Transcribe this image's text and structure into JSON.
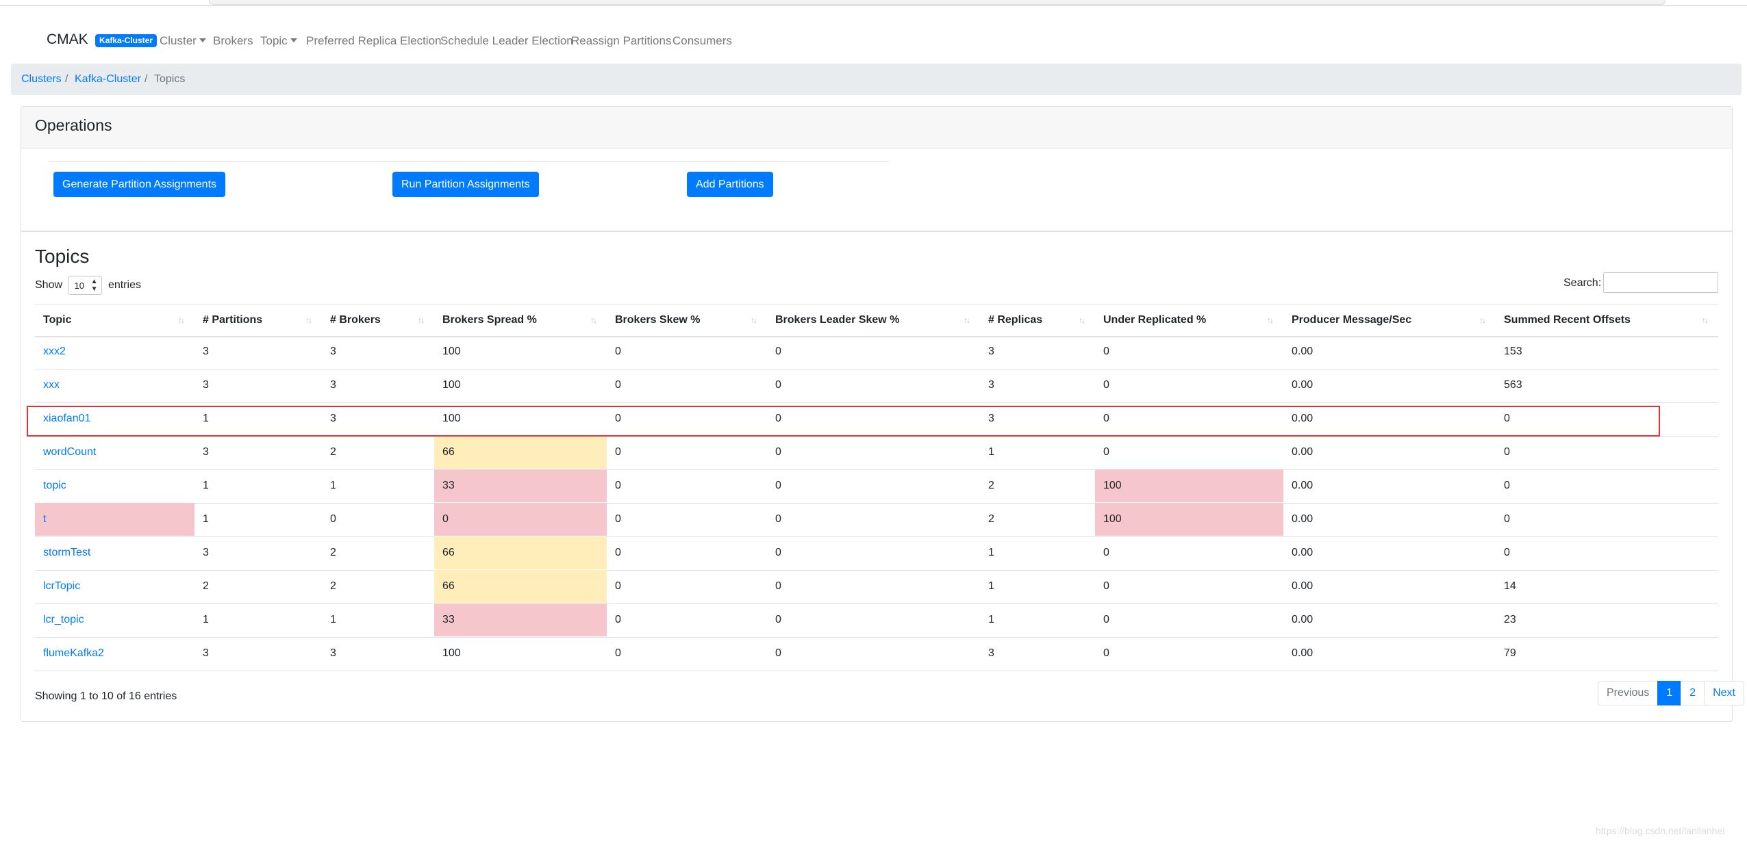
{
  "navbar": {
    "brand": "CMAK",
    "cluster_badge": "Kafka-Cluster",
    "links": {
      "cluster": "Cluster",
      "brokers": "Brokers",
      "topic": "Topic",
      "preferred": "Preferred Replica Election",
      "schedule": "Schedule Leader Election",
      "reassign": "Reassign Partitions",
      "consumers": "Consumers"
    }
  },
  "breadcrumb": {
    "clusters": "Clusters",
    "cluster": "Kafka-Cluster",
    "current": "Topics",
    "separator": "/"
  },
  "operations": {
    "title": "Operations",
    "generate": "Generate Partition Assignments",
    "run": "Run Partition Assignments",
    "add": "Add Partitions"
  },
  "topics": {
    "title": "Topics",
    "show_label": "Show",
    "entries_label": "entries",
    "page_size": "10",
    "search_label": "Search:",
    "search_value": "",
    "headers": [
      "Topic",
      "# Partitions",
      "# Brokers",
      "Brokers Spread %",
      "Brokers Skew %",
      "Brokers Leader Skew %",
      "# Replicas",
      "Under Replicated %",
      "Producer Message/Sec",
      "Summed Recent Offsets"
    ],
    "rows": [
      {
        "name": "xxx2",
        "partitions": "3",
        "brokers": "3",
        "spread": "100",
        "skew": "0",
        "leader_skew": "0",
        "replicas": "3",
        "under": "0",
        "producer": "0.00",
        "offsets": "153"
      },
      {
        "name": "xxx",
        "partitions": "3",
        "brokers": "3",
        "spread": "100",
        "skew": "0",
        "leader_skew": "0",
        "replicas": "3",
        "under": "0",
        "producer": "0.00",
        "offsets": "563"
      },
      {
        "name": "xiaofan01",
        "partitions": "1",
        "brokers": "3",
        "spread": "100",
        "skew": "0",
        "leader_skew": "0",
        "replicas": "3",
        "under": "0",
        "producer": "0.00",
        "offsets": "0"
      },
      {
        "name": "wordCount",
        "partitions": "3",
        "brokers": "2",
        "spread": "66",
        "skew": "0",
        "leader_skew": "0",
        "replicas": "1",
        "under": "0",
        "producer": "0.00",
        "offsets": "0"
      },
      {
        "name": "topic",
        "partitions": "1",
        "brokers": "1",
        "spread": "33",
        "skew": "0",
        "leader_skew": "0",
        "replicas": "2",
        "under": "100",
        "producer": "0.00",
        "offsets": "0"
      },
      {
        "name": "t",
        "partitions": "1",
        "brokers": "0",
        "spread": "0",
        "skew": "0",
        "leader_skew": "0",
        "replicas": "2",
        "under": "100",
        "producer": "0.00",
        "offsets": "0"
      },
      {
        "name": "stormTest",
        "partitions": "3",
        "brokers": "2",
        "spread": "66",
        "skew": "0",
        "leader_skew": "0",
        "replicas": "1",
        "under": "0",
        "producer": "0.00",
        "offsets": "0"
      },
      {
        "name": "lcrTopic",
        "partitions": "2",
        "brokers": "2",
        "spread": "66",
        "skew": "0",
        "leader_skew": "0",
        "replicas": "1",
        "under": "0",
        "producer": "0.00",
        "offsets": "14"
      },
      {
        "name": "lcr_topic",
        "partitions": "1",
        "brokers": "1",
        "spread": "33",
        "skew": "0",
        "leader_skew": "0",
        "replicas": "1",
        "under": "0",
        "producer": "0.00",
        "offsets": "23"
      },
      {
        "name": "flumeKafka2",
        "partitions": "3",
        "brokers": "3",
        "spread": "100",
        "skew": "0",
        "leader_skew": "0",
        "replicas": "3",
        "under": "0",
        "producer": "0.00",
        "offsets": "79"
      }
    ],
    "info": "Showing 1 to 10 of 16 entries",
    "pager": {
      "previous": "Previous",
      "page1": "1",
      "page2": "2",
      "next": "Next"
    }
  },
  "watermark": "https://blog.csdn.net/lanlianhei",
  "colors": {
    "accent": "#007bff",
    "warning": "#ffeeba",
    "danger": "#f5c6cb",
    "highlight_box": "#e23232"
  }
}
